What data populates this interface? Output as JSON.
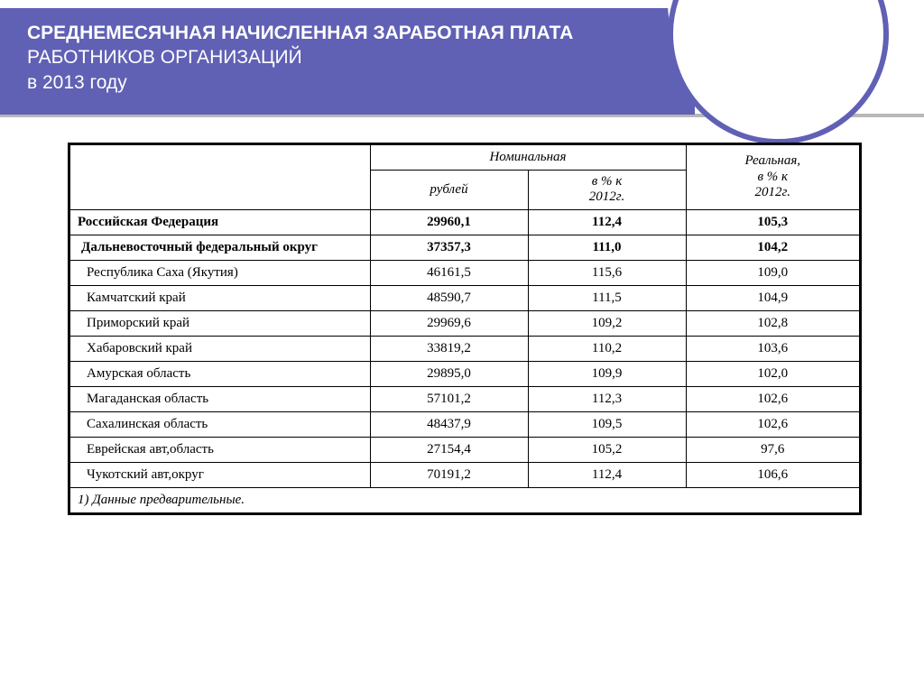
{
  "header": {
    "line1": "СРЕДНЕМЕСЯЧНАЯ НАЧИСЛЕННАЯ ЗАРАБОТНАЯ ПЛАТА",
    "line2": "РАБОТНИКОВ ОРГАНИЗАЦИЙ",
    "line3": "в 2013 году"
  },
  "colors": {
    "accent": "#6060b5",
    "underline": "#b8b8b8",
    "text": "#000000",
    "background": "#ffffff"
  },
  "table": {
    "headers": {
      "nominal": "Номинальная",
      "rub": "рублей",
      "pct2012": "в % к\n2012г.",
      "real": "Реальная,\nв % к\n2012г."
    },
    "rf": {
      "name": "Российская Федерация",
      "rub": "29960,1",
      "pct": "112,4",
      "real": "105,3"
    },
    "dfo": {
      "name": "Дальневосточный федеральный округ",
      "rub": "37357,3",
      "pct": "111,0",
      "real": "104,2"
    },
    "regions": [
      {
        "name": "Республика Саха (Якутия)",
        "rub": "46161,5",
        "pct": "115,6",
        "real": "109,0"
      },
      {
        "name": "Камчатский край",
        "rub": "48590,7",
        "pct": "111,5",
        "real": "104,9"
      },
      {
        "name": "Приморский край",
        "rub": "29969,6",
        "pct": "109,2",
        "real": "102,8"
      },
      {
        "name": "Хабаровский край",
        "rub": "33819,2",
        "pct": "110,2",
        "real": "103,6"
      },
      {
        "name": "Амурская область",
        "rub": "29895,0",
        "pct": "109,9",
        "real": "102,0"
      },
      {
        "name": "Магаданская область",
        "rub": "57101,2",
        "pct": "112,3",
        "real": "102,6"
      },
      {
        "name": "Сахалинская область",
        "rub": "48437,9",
        "pct": "109,5",
        "real": "102,6"
      },
      {
        "name": "Еврейская авт,область",
        "rub": "27154,4",
        "pct": "105,2",
        "real": "97,6"
      },
      {
        "name": "Чукотский авт,округ",
        "rub": "70191,2",
        "pct": "112,4",
        "real": "106,6"
      }
    ],
    "footnote": "1) Данные предварительные."
  }
}
